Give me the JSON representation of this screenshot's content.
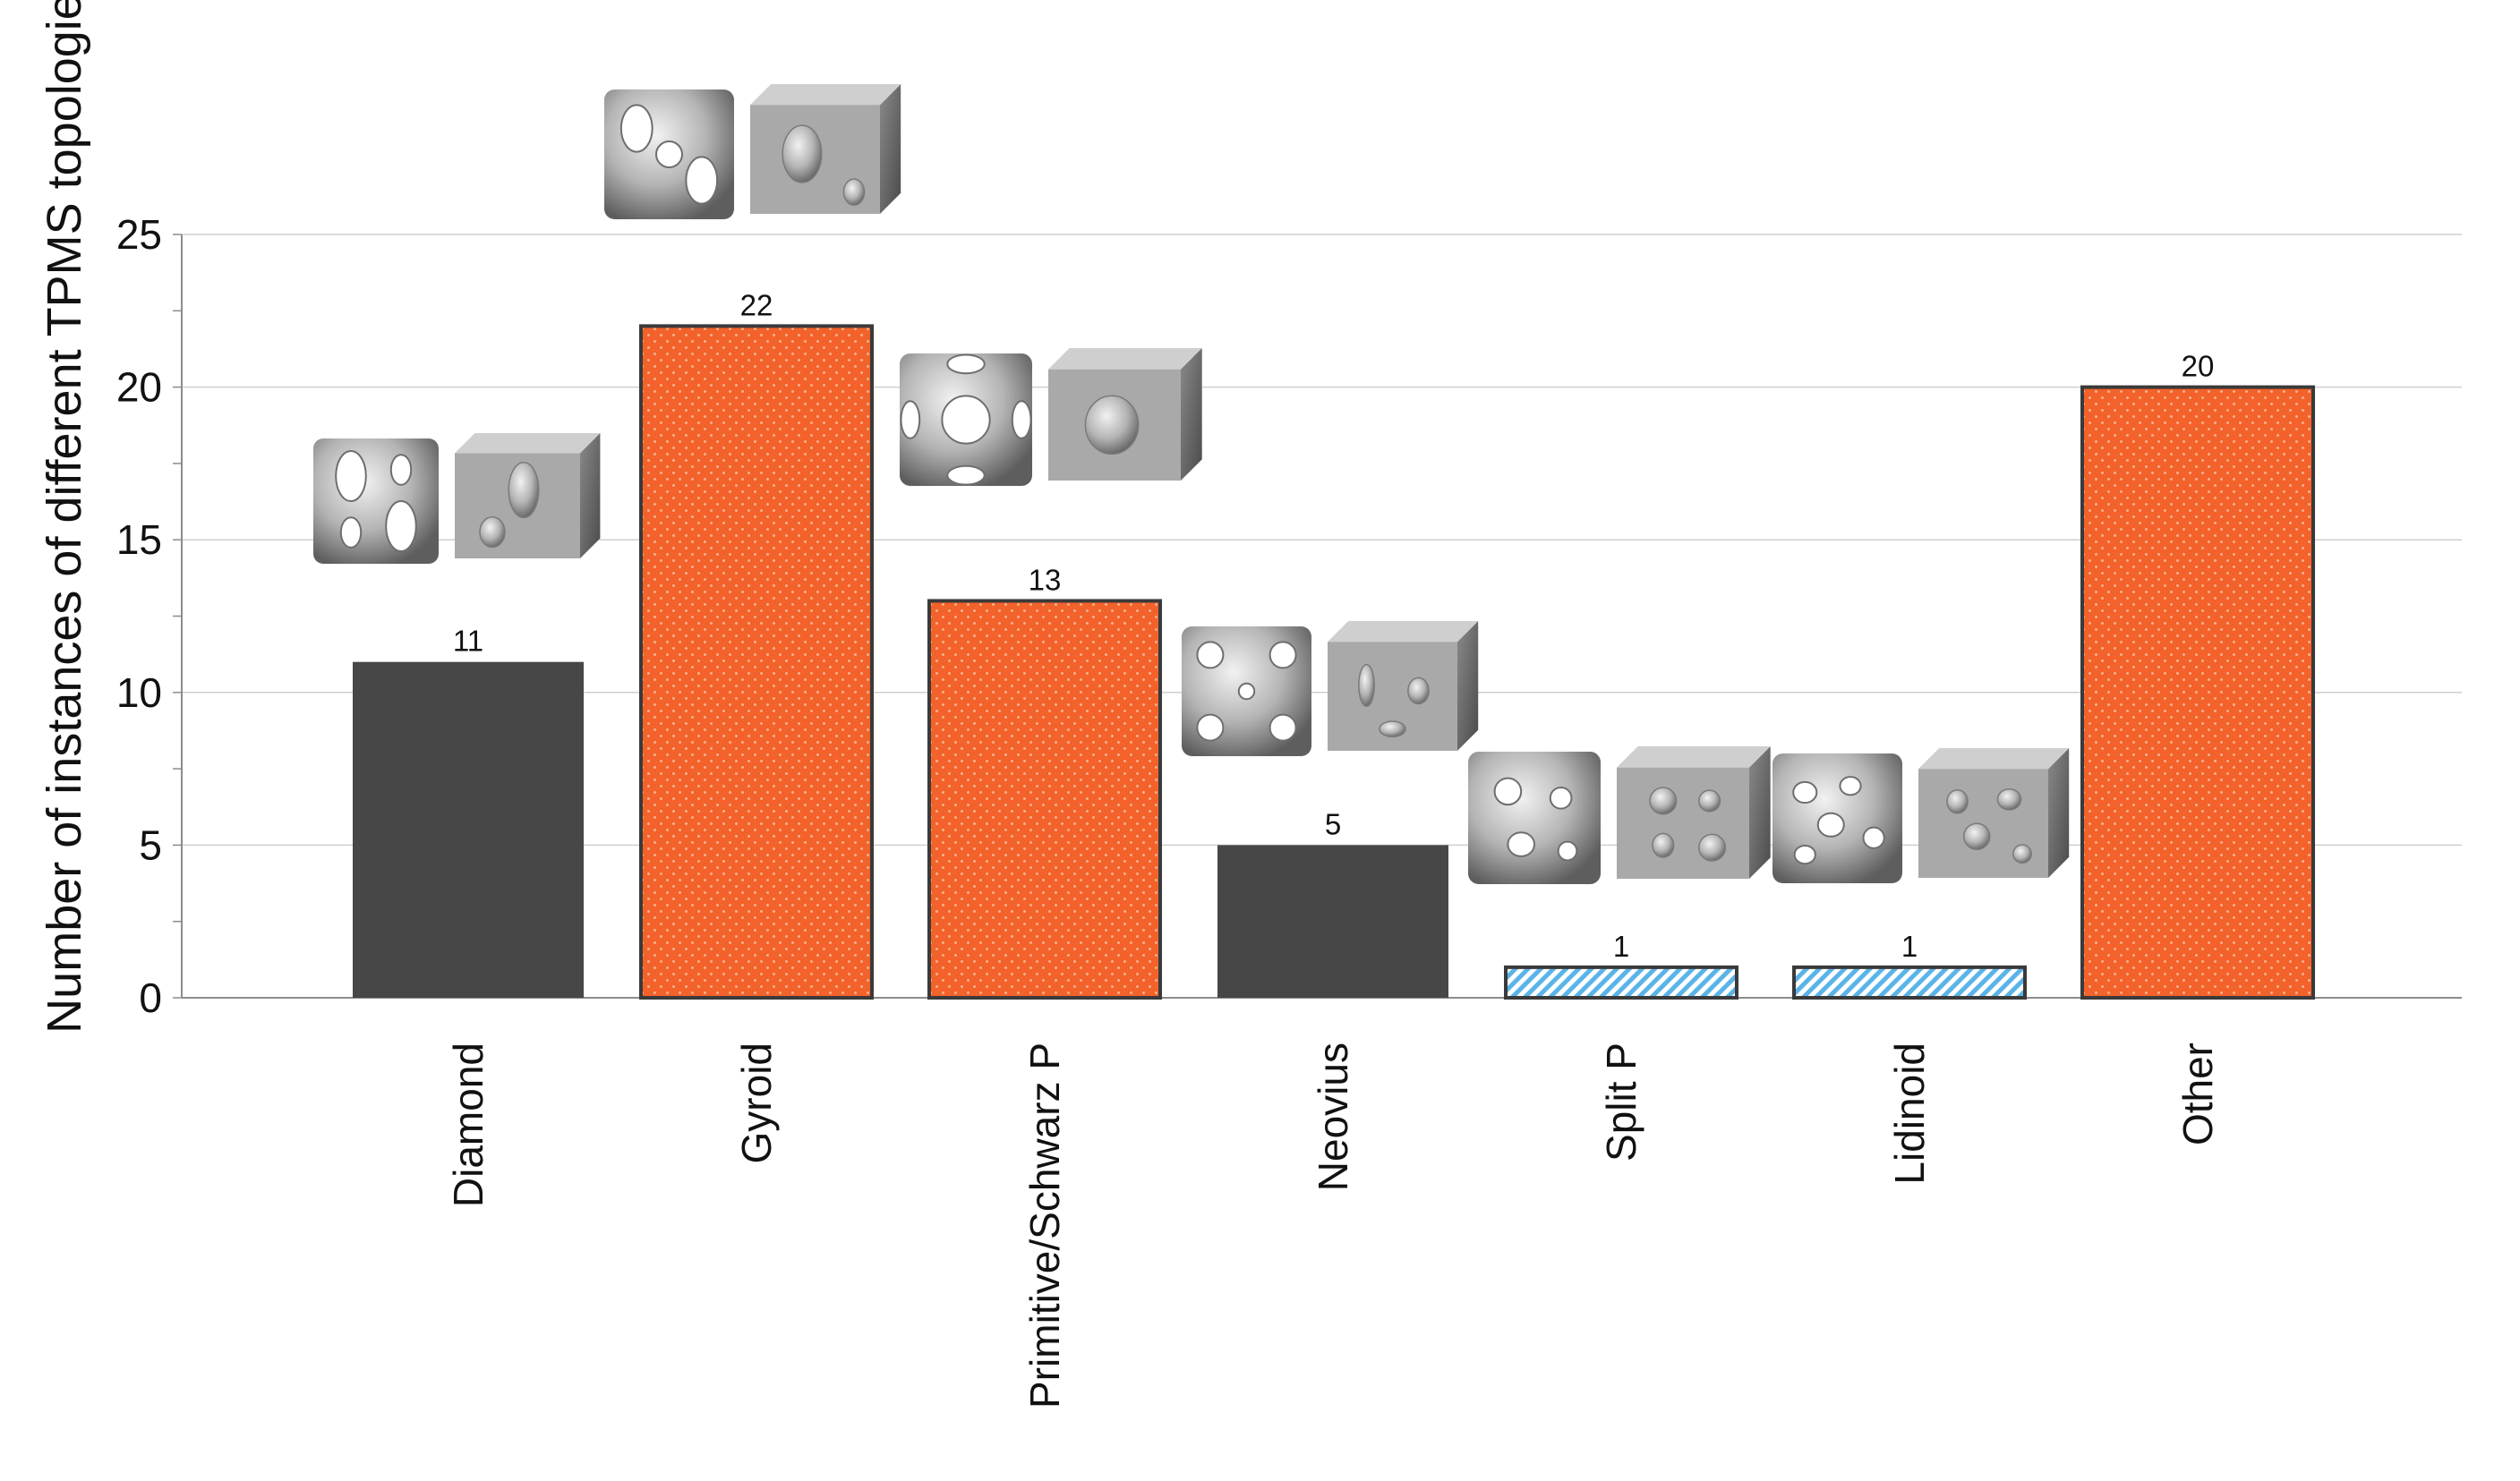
{
  "chart_data": {
    "type": "bar",
    "title": "",
    "xlabel": "",
    "ylabel": "Number of instances of different TPMS topologies",
    "ylim": [
      0,
      25
    ],
    "yticks": [
      0,
      5,
      10,
      15,
      20,
      25
    ],
    "grid": true,
    "categories": [
      "Diamond",
      "Gyroid",
      "Primitive/Schwarz P",
      "Neovius",
      "Split P",
      "Lidinoid",
      "Other"
    ],
    "values": [
      11,
      22,
      13,
      5,
      1,
      1,
      20
    ],
    "data_labels": [
      "11",
      "22",
      "13",
      "5",
      "1",
      "1",
      "20"
    ],
    "bar_styles": [
      "solid-dark",
      "dotted-orange",
      "dotted-orange",
      "solid-dark",
      "hatched-blue",
      "hatched-blue",
      "dotted-orange"
    ],
    "colors": {
      "solid_dark": "#474747",
      "orange": "#f2622a",
      "hatch_blue": "#5ab4e8",
      "grid": "#cfcfcf",
      "axis": "#8c8c8c"
    },
    "structure_images": [
      "diamond-structure-icon",
      "gyroid-structure-icon",
      "primitive-structure-icon",
      "neovius-structure-icon",
      "split-p-structure-icon",
      "lidinoid-structure-icon"
    ]
  }
}
